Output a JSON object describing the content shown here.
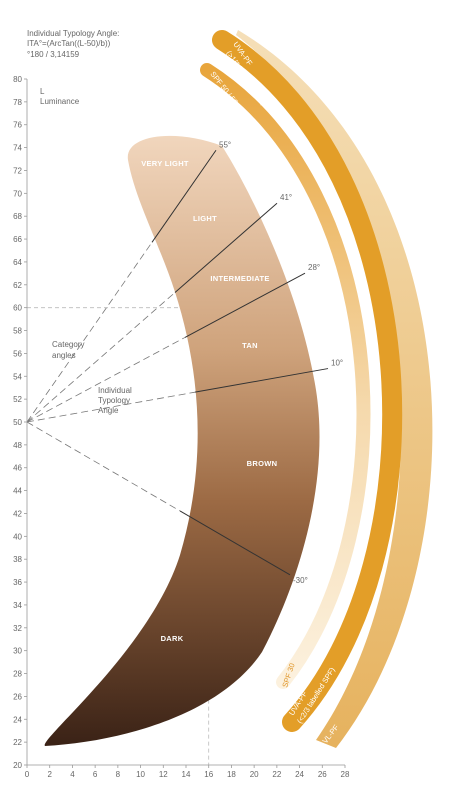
{
  "chart_data": {
    "type": "ita",
    "title_lines": [
      "Individual Typology Angle:",
      "ITA°=(ArcTan((L-50)/b))",
      "°180 / 3,14159"
    ],
    "y_axis_label": [
      "L",
      "Luminance"
    ],
    "xlim": [
      0,
      28
    ],
    "xticks": [
      0,
      2,
      4,
      6,
      8,
      10,
      12,
      14,
      16,
      18,
      20,
      22,
      24,
      26,
      28
    ],
    "ylim": [
      20,
      80
    ],
    "yticks": [
      20,
      22,
      24,
      26,
      28,
      30,
      32,
      34,
      36,
      38,
      40,
      42,
      44,
      46,
      48,
      50,
      52,
      54,
      56,
      58,
      60,
      62,
      64,
      66,
      68,
      70,
      72,
      74,
      76,
      78,
      80
    ],
    "ita_origin": {
      "x": 0,
      "y": 50
    },
    "reference_point": {
      "x": 16,
      "y": 60
    },
    "angles": [
      {
        "value": 55,
        "label": "55°"
      },
      {
        "value": 41,
        "label": "41°"
      },
      {
        "value": 28,
        "label": "28°"
      },
      {
        "value": 10,
        "label": "10°"
      },
      {
        "value": -30,
        "label": "-30°"
      }
    ],
    "categories": [
      "VERY LIGHT",
      "LIGHT",
      "INTERMEDIATE",
      "TAN",
      "BROWN",
      "DARK"
    ],
    "category_angles_label": [
      "Category",
      "angles"
    ],
    "ita_label": [
      "Individual",
      "Typology",
      "Angle"
    ],
    "protection_bands": {
      "uva_top": [
        "UVA-PF",
        "(>1/3 labelled SPF)"
      ],
      "spf_top": "SPF 50 / 50+",
      "spf_bottom": "SPF 30",
      "uva_bottom": [
        "UVA-PF",
        "(<2/3 labelled SPF)"
      ],
      "vl": "VL-PF"
    }
  }
}
